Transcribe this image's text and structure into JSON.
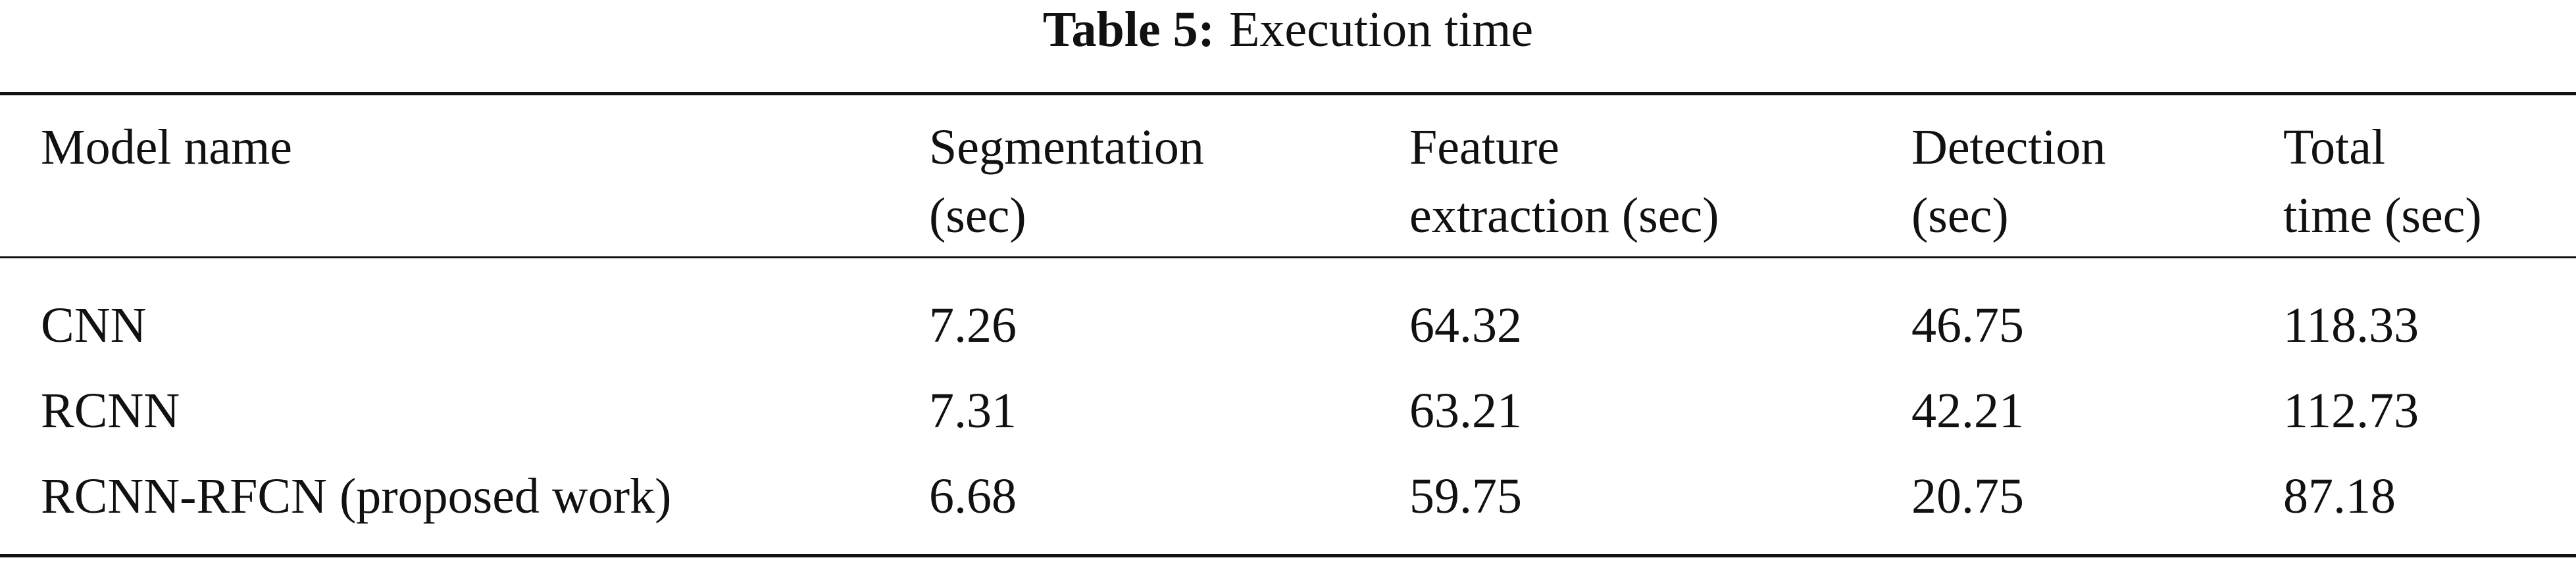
{
  "table": {
    "label": "Table 5:",
    "caption": "Execution time",
    "header": [
      [
        "Model name"
      ],
      [
        "Segmentation",
        "(sec)"
      ],
      [
        "Feature",
        "extraction (sec)"
      ],
      [
        "Detection",
        "(sec)"
      ],
      [
        "Total",
        "time (sec)"
      ]
    ],
    "rows": [
      [
        "CNN",
        "7.26",
        "64.32",
        "46.75",
        "118.33"
      ],
      [
        "RCNN",
        "7.31",
        "63.21",
        "42.21",
        "112.73"
      ],
      [
        "RCNN-RFCN (proposed work)",
        "6.68",
        "59.75",
        "20.75",
        "87.18"
      ]
    ]
  }
}
